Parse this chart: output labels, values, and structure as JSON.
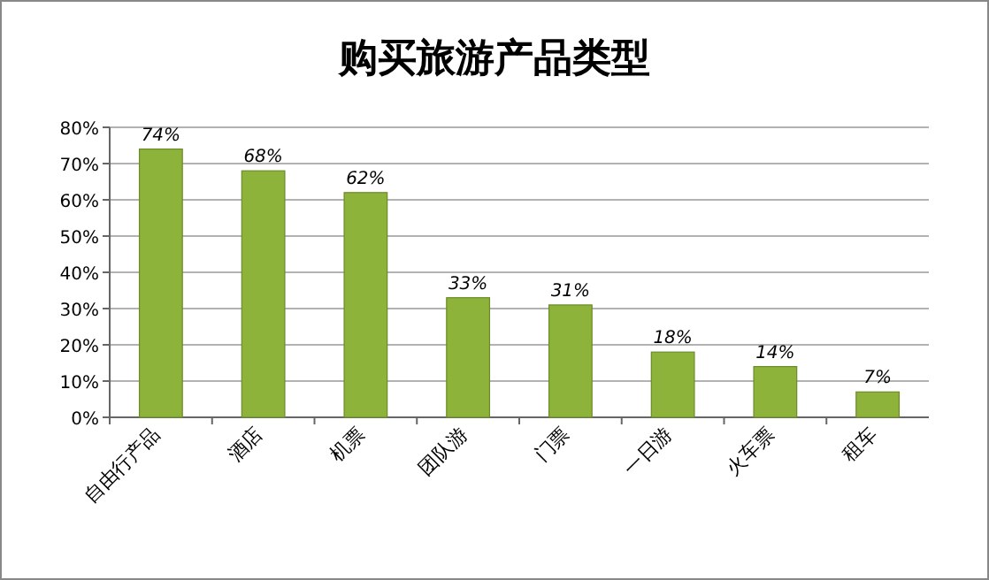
{
  "chart_data": {
    "type": "bar",
    "title": "购买旅游产品类型",
    "categories": [
      "自由行产品",
      "酒店",
      "机票",
      "团队游",
      "门票",
      "一日游",
      "火车票",
      "租车"
    ],
    "values": [
      74,
      68,
      62,
      33,
      31,
      18,
      14,
      7
    ],
    "value_labels": [
      "74%",
      "68%",
      "62%",
      "33%",
      "31%",
      "18%",
      "14%",
      "7%"
    ],
    "color": "#8db33a",
    "ylim": [
      0,
      80
    ],
    "yticks": [
      {
        "value": 0,
        "label": "0%"
      },
      {
        "value": 10,
        "label": "10%"
      },
      {
        "value": 20,
        "label": "20%"
      },
      {
        "value": 30,
        "label": "30%"
      },
      {
        "value": 40,
        "label": "40%"
      },
      {
        "value": 50,
        "label": "50%"
      },
      {
        "value": 60,
        "label": "60%"
      },
      {
        "value": 70,
        "label": "70%"
      },
      {
        "value": 80,
        "label": "80%"
      }
    ],
    "grid": "y"
  }
}
